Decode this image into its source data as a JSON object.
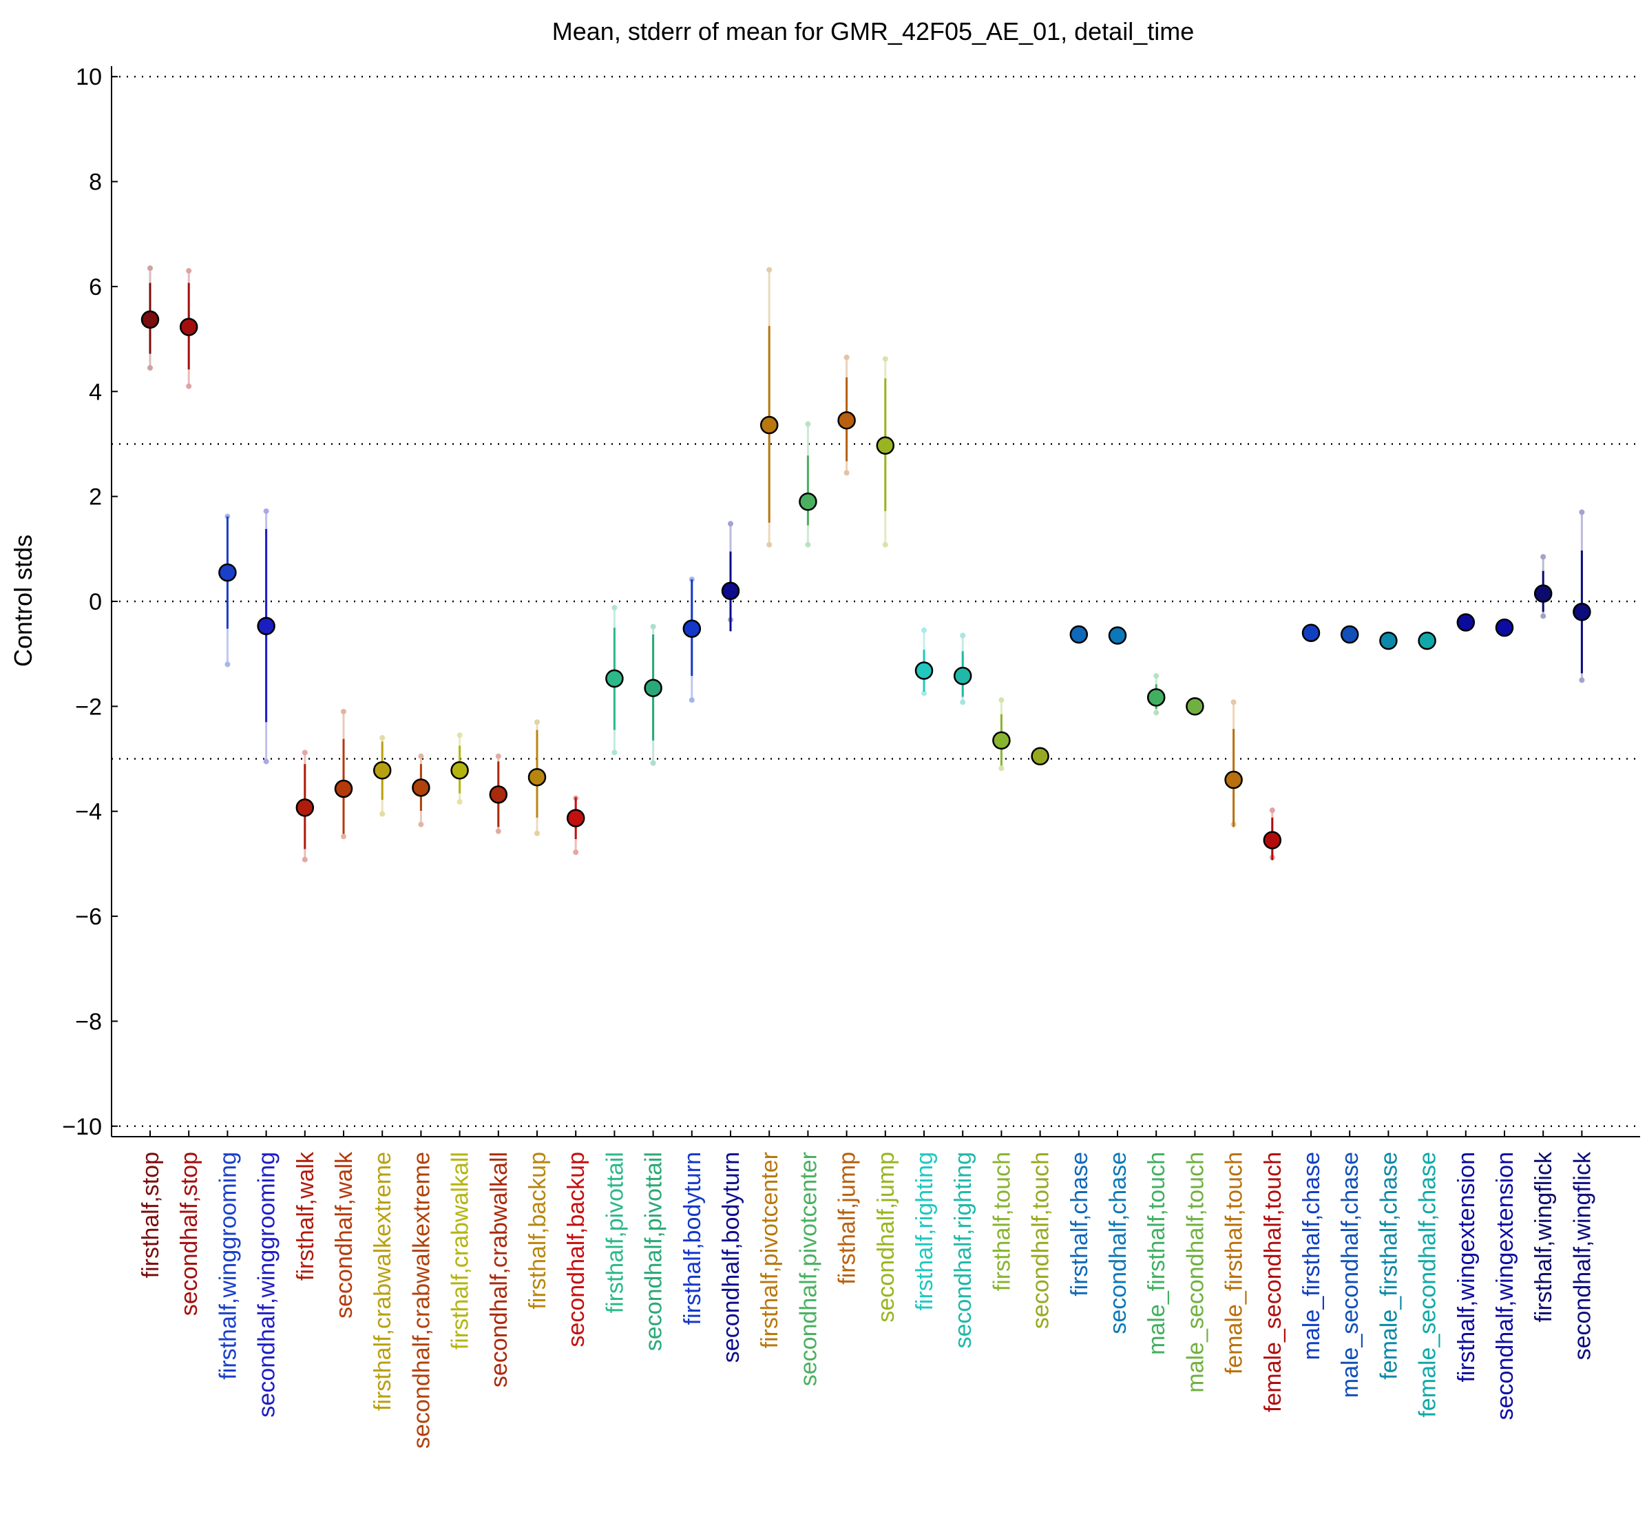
{
  "chart_data": {
    "type": "scatter",
    "title": "Mean, stderr of mean for GMR_42F05_AE_01, detail_time",
    "ylabel": "Control stds",
    "xlabel": "",
    "ylim": [
      -10.2,
      10.2
    ],
    "yticks": [
      10,
      8,
      6,
      4,
      2,
      0,
      -2,
      -4,
      -6,
      -8,
      -10
    ],
    "ytick_labels": [
      "10",
      "8",
      "6",
      "4",
      "2",
      "0",
      "−2",
      "−4",
      "−6",
      "−8",
      "−10"
    ],
    "reference_lines": [
      10,
      3,
      0,
      -3,
      -10
    ],
    "grid": false,
    "legend": "none",
    "categories": [
      "firsthalf,stop",
      "secondhalf,stop",
      "firsthalf,winggrooming",
      "secondhalf,winggrooming",
      "firsthalf,walk",
      "secondhalf,walk",
      "firsthalf,crabwalkextreme",
      "secondhalf,crabwalkextreme",
      "firsthalf,crabwalkall",
      "secondhalf,crabwalkall",
      "firsthalf,backup",
      "secondhalf,backup",
      "firsthalf,pivottail",
      "secondhalf,pivottail",
      "firsthalf,bodyturn",
      "secondhalf,bodyturn",
      "firsthalf,pivotcenter",
      "secondhalf,pivotcenter",
      "firsthalf,jump",
      "secondhalf,jump",
      "firsthalf,righting",
      "secondhalf,righting",
      "firsthalf,touch",
      "secondhalf,touch",
      "firsthalf,chase",
      "secondhalf,chase",
      "male_firsthalf,touch",
      "male_secondhalf,touch",
      "female_firsthalf,touch",
      "female_secondhalf,touch",
      "male_firsthalf,chase",
      "male_secondhalf,chase",
      "female_firsthalf,chase",
      "female_secondhalf,chase",
      "firsthalf,wingextension",
      "secondhalf,wingextension",
      "firsthalf,wingflick",
      "secondhalf,wingflick"
    ],
    "colors": [
      "#7a0d0d",
      "#a30f0f",
      "#1a3fc8",
      "#1d1dc4",
      "#b01c0c",
      "#b43a0c",
      "#b8a011",
      "#b0420c",
      "#b4b410",
      "#aa2a0c",
      "#b8860f",
      "#c40f0f",
      "#2db88a",
      "#2aa878",
      "#1438c8",
      "#0c0c8c",
      "#b8780f",
      "#4ab060",
      "#b8600f",
      "#98b420",
      "#20c8c0",
      "#20b8a8",
      "#88b430",
      "#98a820",
      "#1068b8",
      "#0c78b8",
      "#40b060",
      "#70b040",
      "#b8700c",
      "#b00c0c",
      "#1040c0",
      "#1050b8",
      "#0c88a8",
      "#10a8a8",
      "#0c0c9c",
      "#0c0ca4",
      "#0c0c6c",
      "#0c0c7c"
    ],
    "series": [
      {
        "values": [
          5.37,
          5.23,
          0.55,
          -0.47,
          -3.93,
          -3.57,
          -3.22,
          -3.55,
          -3.22,
          -3.68,
          -3.35,
          -4.13,
          -1.47,
          -1.65,
          -0.52,
          0.2,
          3.36,
          1.9,
          3.45,
          2.97,
          -1.32,
          -1.42,
          -2.65,
          -2.95,
          -0.63,
          -0.65,
          -1.83,
          -2.0,
          -3.4,
          -4.55,
          -0.6,
          -0.63,
          -0.75,
          -0.75,
          -0.4,
          -0.5,
          0.15,
          -0.2
        ],
        "err_low": [
          4.72,
          4.42,
          -0.52,
          -2.3,
          -4.72,
          -4.43,
          -3.78,
          -3.99,
          -3.66,
          -4.3,
          -4.12,
          -4.53,
          -2.45,
          -2.65,
          -1.42,
          -0.57,
          1.5,
          1.45,
          2.67,
          1.72,
          -1.72,
          -1.82,
          -3.13,
          null,
          null,
          null,
          -2.05,
          null,
          -4.3,
          -4.93,
          null,
          null,
          null,
          null,
          null,
          null,
          -0.2,
          -1.37
        ],
        "err_high": [
          6.07,
          6.07,
          1.62,
          1.38,
          -3.1,
          -2.62,
          -2.67,
          -3.1,
          -2.75,
          -3.05,
          -2.45,
          -3.73,
          -0.5,
          -0.63,
          0.42,
          0.95,
          5.25,
          2.78,
          4.27,
          4.25,
          -0.92,
          -0.95,
          -2.15,
          null,
          null,
          null,
          -1.58,
          null,
          -2.43,
          -4.12,
          null,
          null,
          null,
          null,
          null,
          null,
          0.58,
          0.97
        ],
        "range_low": [
          4.45,
          4.1,
          -1.2,
          -3.05,
          -4.92,
          -4.48,
          -4.05,
          -4.25,
          -3.82,
          -4.38,
          -4.42,
          -4.78,
          -2.88,
          -3.08,
          -1.88,
          -0.35,
          1.08,
          1.08,
          2.45,
          1.08,
          -1.75,
          -1.92,
          -3.18,
          null,
          null,
          null,
          -2.12,
          null,
          -4.25,
          -4.88,
          null,
          null,
          null,
          null,
          null,
          null,
          -0.28,
          -1.5
        ],
        "range_high": [
          6.35,
          6.3,
          1.62,
          1.72,
          -2.88,
          -2.1,
          -2.6,
          -2.95,
          -2.55,
          -2.95,
          -2.3,
          -3.75,
          -0.12,
          -0.48,
          0.42,
          1.48,
          6.32,
          3.38,
          4.65,
          4.62,
          -0.55,
          -0.65,
          -1.88,
          null,
          null,
          null,
          -1.42,
          null,
          -1.92,
          -3.98,
          null,
          null,
          null,
          null,
          -0.52,
          null,
          0.85,
          1.7
        ]
      }
    ]
  }
}
